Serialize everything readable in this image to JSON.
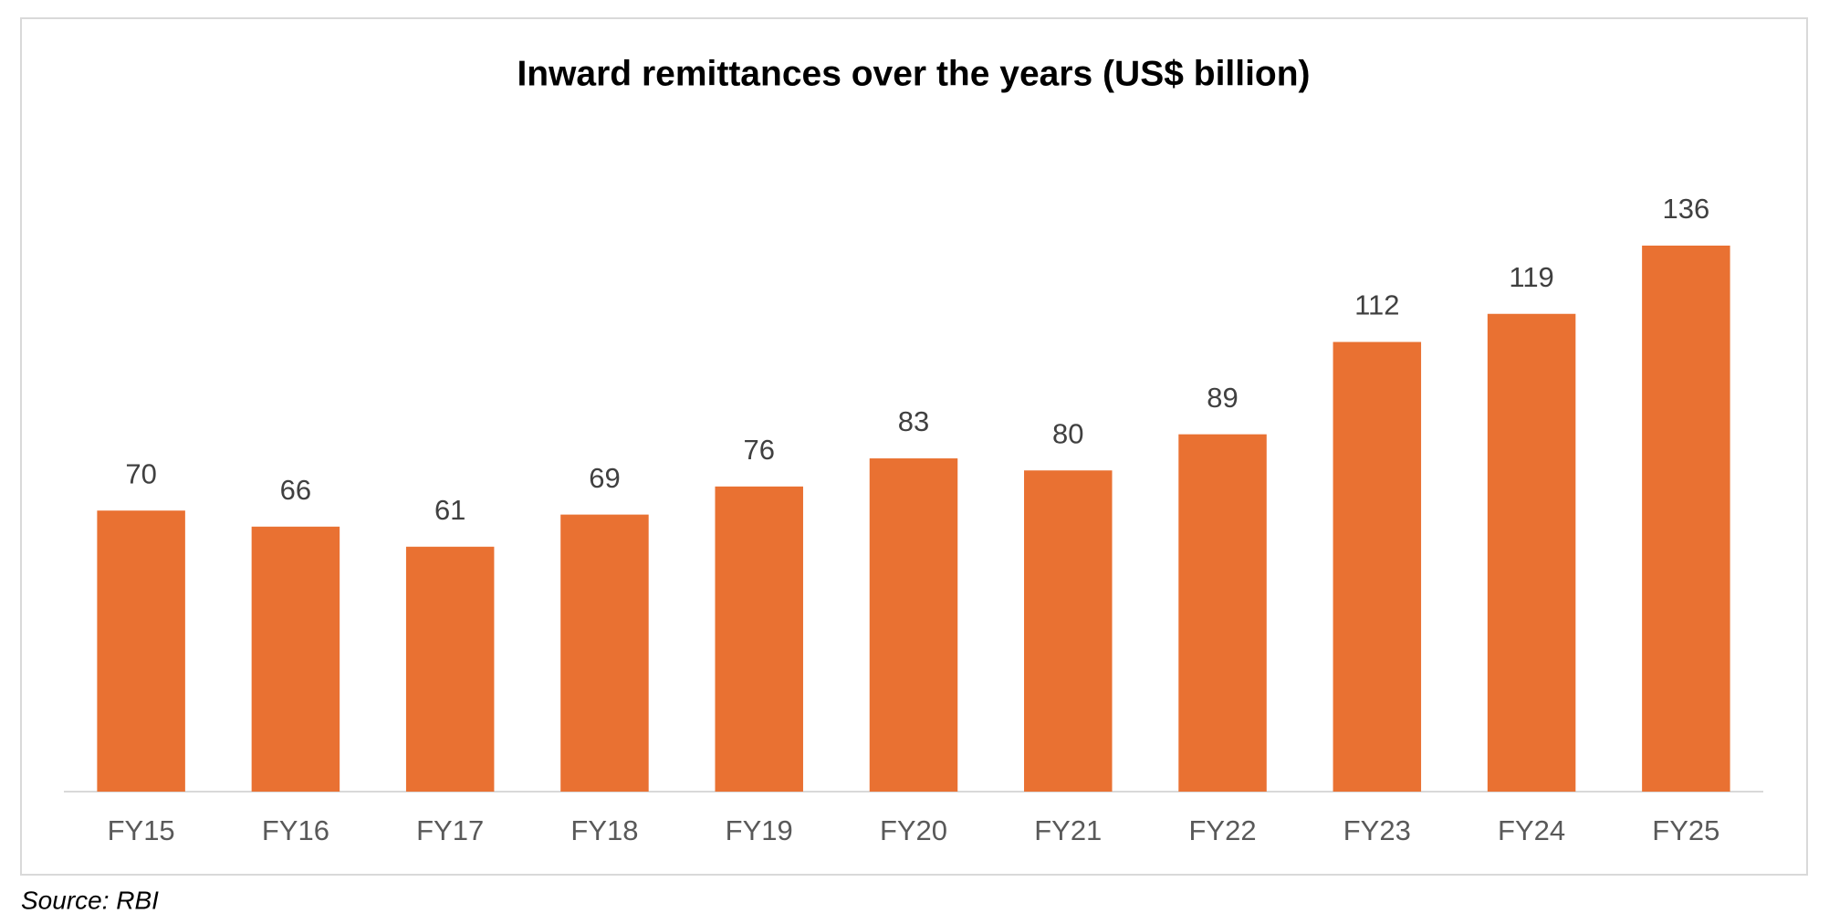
{
  "chart_data": {
    "type": "bar",
    "title": "Inward remittances over the years (US$ billion)",
    "categories": [
      "FY15",
      "FY16",
      "FY17",
      "FY18",
      "FY19",
      "FY20",
      "FY21",
      "FY22",
      "FY23",
      "FY24",
      "FY25"
    ],
    "values": [
      70,
      66,
      61,
      69,
      76,
      83,
      80,
      89,
      112,
      119,
      136
    ],
    "color": "#e97132",
    "source": "Source: RBI"
  }
}
